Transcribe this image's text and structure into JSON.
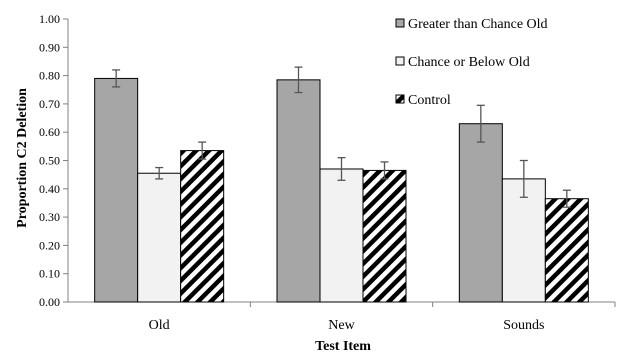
{
  "chart_data": {
    "type": "bar",
    "xlabel": "Test Item",
    "ylabel": "Proportion C2 Deletion",
    "ylim": [
      0,
      1
    ],
    "yticks": [
      "0.00",
      "0.10",
      "0.20",
      "0.30",
      "0.40",
      "0.50",
      "0.60",
      "0.70",
      "0.80",
      "0.90",
      "1.00"
    ],
    "categories": [
      "Old",
      "New",
      "Sounds"
    ],
    "series": [
      {
        "name": "Greater than Chance Old",
        "values": [
          0.79,
          0.785,
          0.63
        ],
        "errors": [
          0.03,
          0.045,
          0.065
        ],
        "fill": "#a6a6a6",
        "pattern": "solid"
      },
      {
        "name": "Chance or Below Old",
        "values": [
          0.455,
          0.47,
          0.435
        ],
        "errors": [
          0.02,
          0.04,
          0.065
        ],
        "fill": "#f2f2f2",
        "pattern": "solid"
      },
      {
        "name": "Control",
        "values": [
          0.535,
          0.465,
          0.365
        ],
        "errors": [
          0.03,
          0.03,
          0.03
        ],
        "fill": "#ffffff",
        "pattern": "diagonal-hatch"
      }
    ],
    "grid": false,
    "legend_position": "top-right"
  }
}
